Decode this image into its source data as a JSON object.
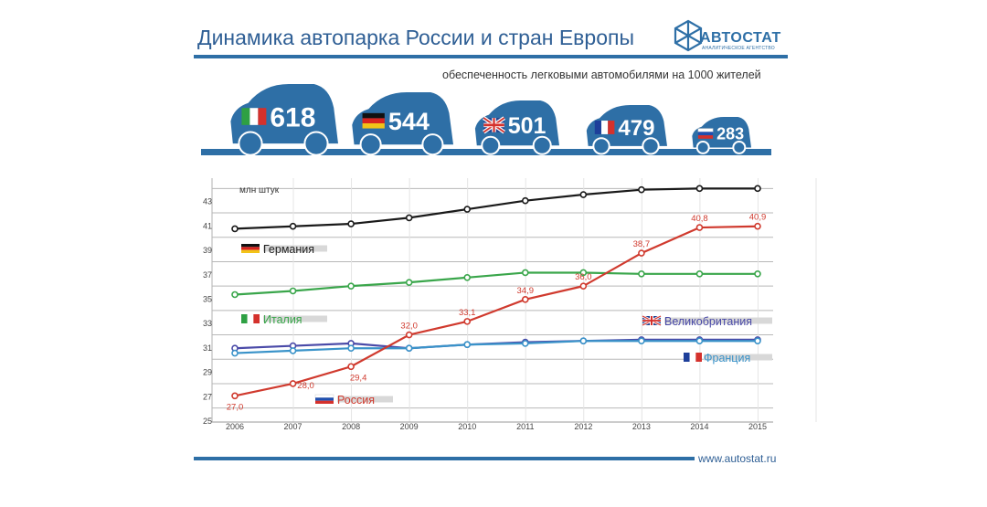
{
  "header": {
    "title": "Динамика автопарка России и стран Европы",
    "subtitle": "обеспеченность легковыми автомобилями на 1000 жителей",
    "logo_name": "АВТОСТАТ",
    "logo_sub": "АНАЛИТИЧЕСКОЕ АГЕНТСТВО"
  },
  "footer": {
    "url": "www.autostat.ru"
  },
  "colors": {
    "brand": "#2e6fa6",
    "germany": "#1a1a1a",
    "italy": "#3aa64b",
    "russia": "#d03a2e",
    "uk": "#4a4aa8",
    "france": "#3a93c9"
  },
  "cars": [
    {
      "country": "Италия",
      "flag": "flag-italy-icon",
      "value": "618"
    },
    {
      "country": "Германия",
      "flag": "flag-germany-icon",
      "value": "544"
    },
    {
      "country": "Великобритания",
      "flag": "flag-uk-icon",
      "value": "501"
    },
    {
      "country": "Франция",
      "flag": "flag-france-icon",
      "value": "479"
    },
    {
      "country": "Россия",
      "flag": "flag-russia-icon",
      "value": "283"
    }
  ],
  "chart_data": {
    "type": "line",
    "title": "",
    "ylabel": "млн штук",
    "xlabel": "",
    "ylim": [
      25,
      44
    ],
    "yticks": [
      25,
      27,
      29,
      31,
      33,
      35,
      37,
      39,
      41,
      43
    ],
    "categories": [
      "2006",
      "2007",
      "2008",
      "2009",
      "2010",
      "2011",
      "2012",
      "2013",
      "2014",
      "2015"
    ],
    "series": [
      {
        "name": "Германия",
        "values": [
          40.7,
          40.9,
          41.1,
          41.6,
          42.3,
          43.0,
          43.5,
          43.9,
          44.0,
          44.0
        ]
      },
      {
        "name": "Италия",
        "values": [
          35.3,
          35.6,
          36.0,
          36.3,
          36.7,
          37.1,
          37.1,
          37.0,
          37.0,
          37.0
        ]
      },
      {
        "name": "Великобритания",
        "values": [
          30.9,
          31.1,
          31.3,
          30.9,
          31.2,
          31.4,
          31.5,
          31.6,
          31.6,
          31.6
        ]
      },
      {
        "name": "Франция",
        "values": [
          30.5,
          30.7,
          30.9,
          30.9,
          31.2,
          31.3,
          31.5,
          31.5,
          31.5,
          31.5
        ]
      },
      {
        "name": "Россия",
        "values": [
          27.0,
          28.0,
          29.4,
          32.0,
          33.1,
          34.9,
          36.0,
          38.7,
          40.8,
          40.9
        ],
        "data_labels": [
          "27,0",
          "28,0",
          "29,4",
          "32,0",
          "33,1",
          "34,9",
          "36,0",
          "38,7",
          "40,8",
          "40,9"
        ]
      }
    ]
  }
}
